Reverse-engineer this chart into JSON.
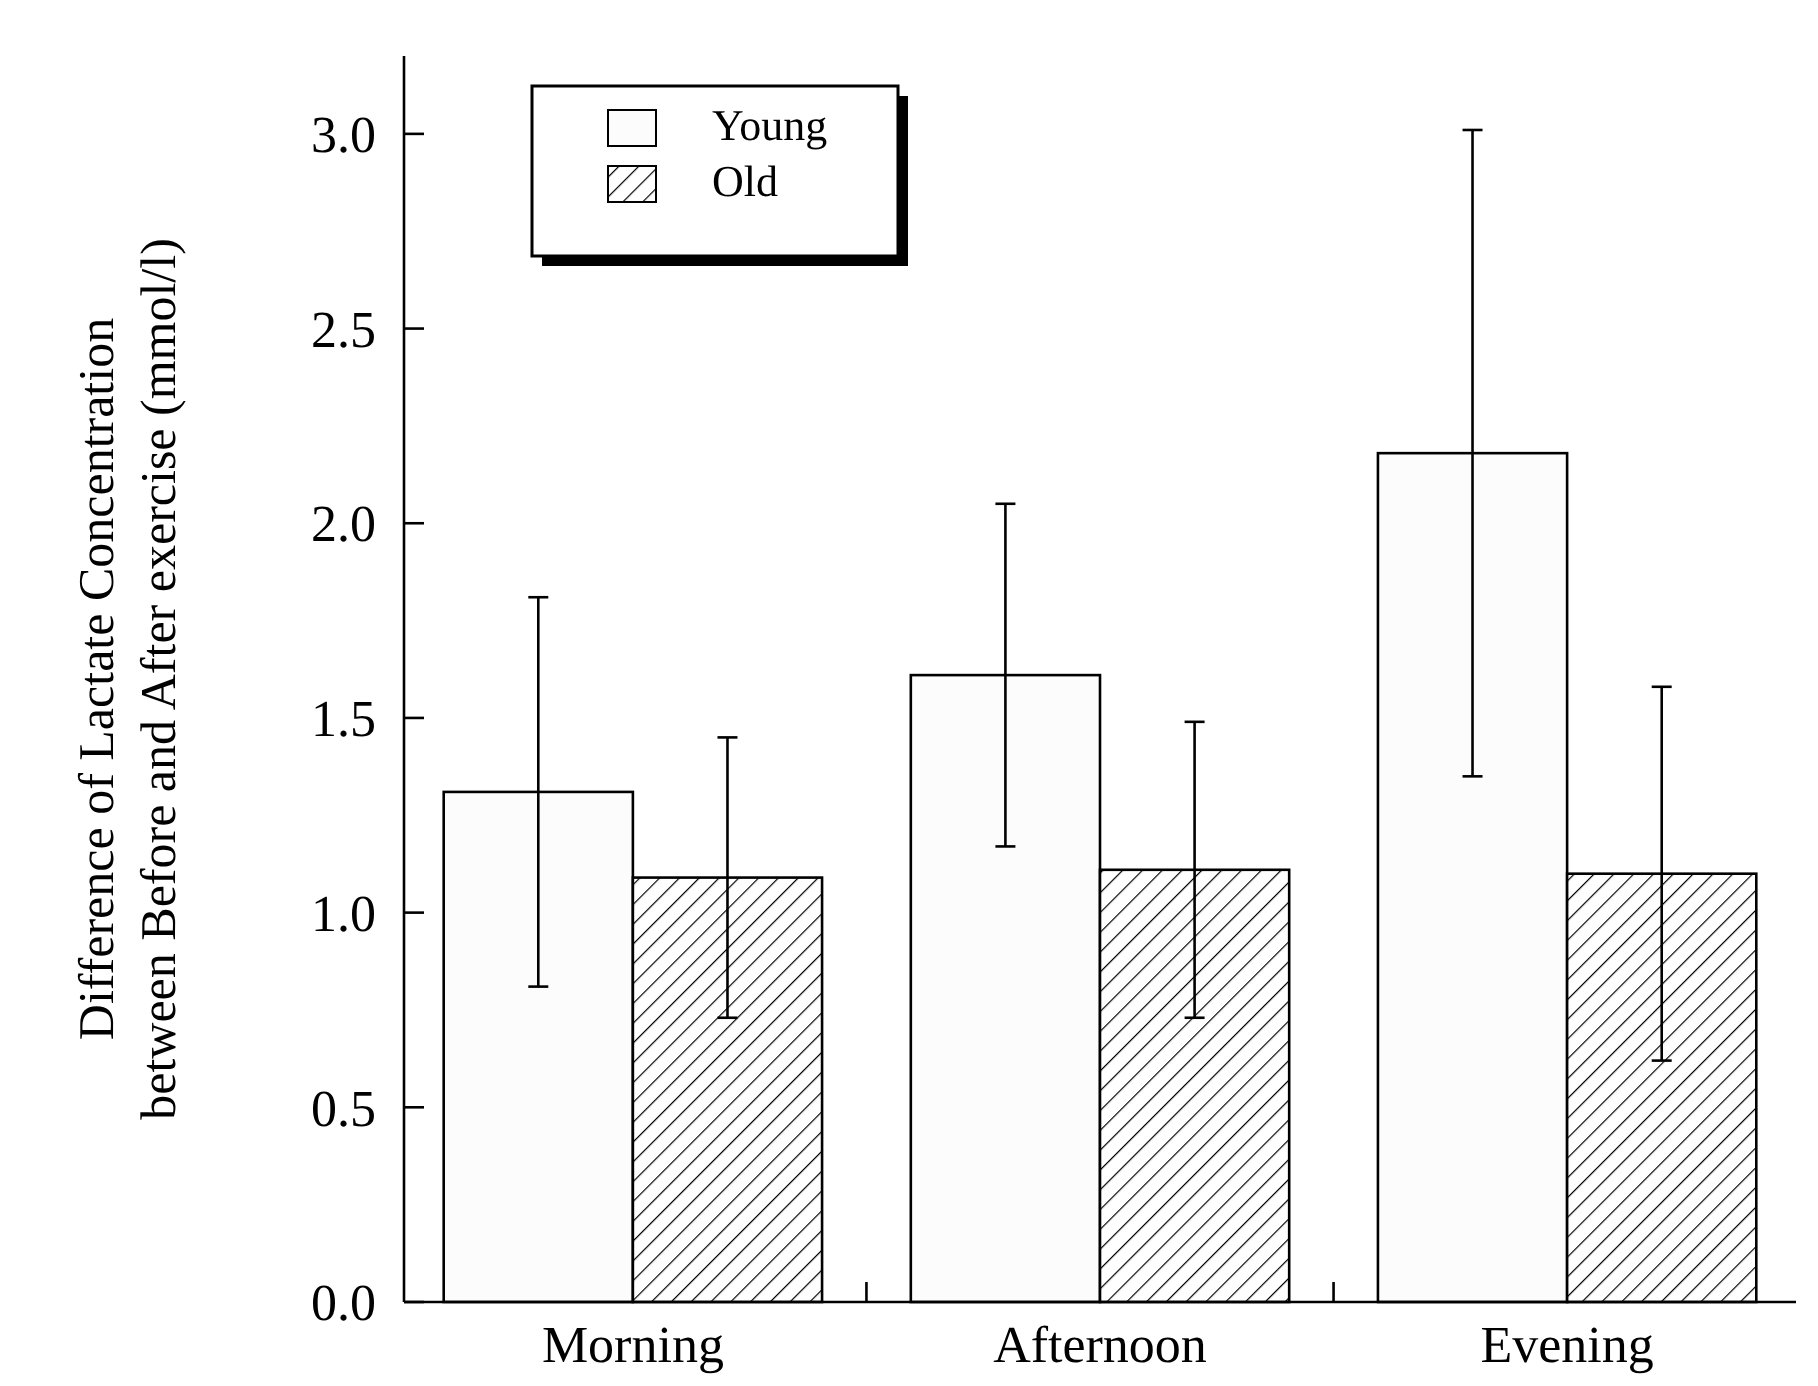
{
  "chart_data": {
    "type": "bar",
    "ylabel": "Difference of Lactate Concentration\nbetween Before and After exercise (mmol/l)",
    "categories": [
      "Morning",
      "Afternoon",
      "Evening"
    ],
    "series": [
      {
        "name": "Young",
        "color": "#fcfcfc",
        "values": [
          1.31,
          1.61,
          2.18
        ],
        "errors": [
          0.5,
          0.44,
          0.83
        ]
      },
      {
        "name": "Old",
        "color": "#000000",
        "values": [
          1.09,
          1.11,
          1.1
        ],
        "errors": [
          0.36,
          0.38,
          0.48
        ]
      }
    ],
    "ylim": [
      0,
      3.2
    ],
    "yticks": [
      {
        "value": 0,
        "label": "0.0"
      },
      {
        "value": 0.5,
        "label": "0.5"
      },
      {
        "value": 1,
        "label": "1.0"
      },
      {
        "value": 1.5,
        "label": "1.5"
      },
      {
        "value": 2,
        "label": "2.0"
      },
      {
        "value": 2.5,
        "label": "2.5"
      },
      {
        "value": 3,
        "label": "3.0"
      }
    ],
    "grid": false,
    "legend": "top left"
  }
}
